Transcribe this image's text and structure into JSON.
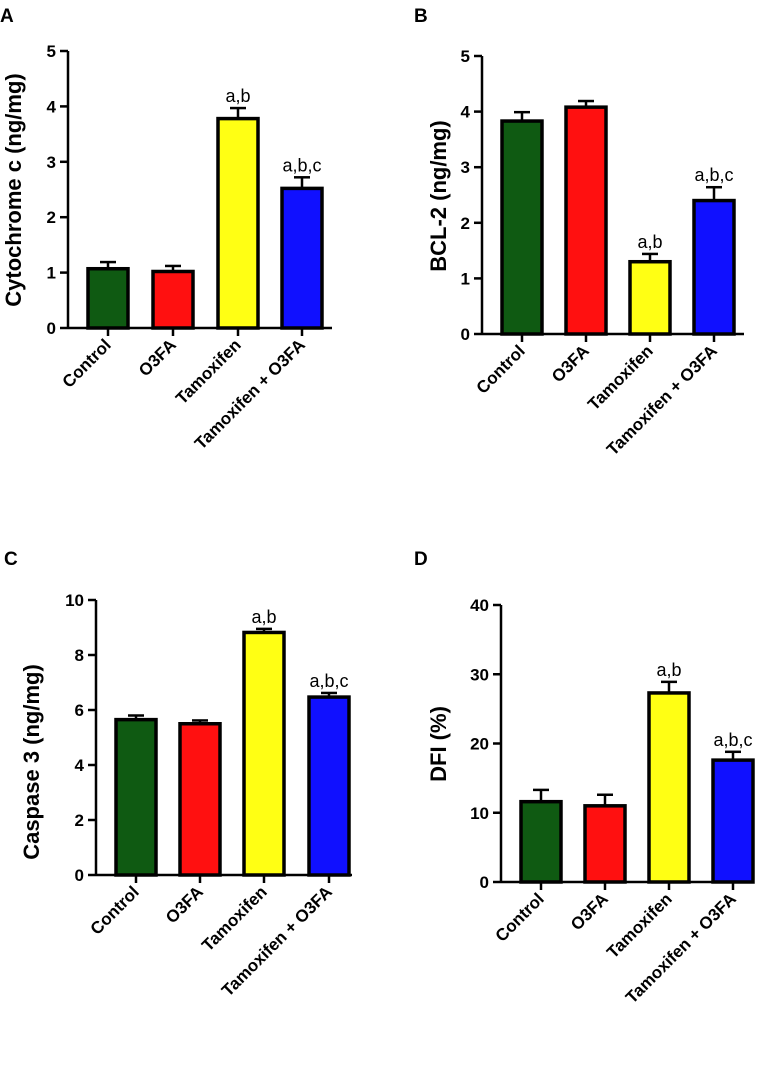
{
  "figure": {
    "groups": [
      "Control",
      "O3FA",
      "Tamoxifen",
      "Tamoxifen + O3FA"
    ]
  },
  "colors": [
    "#0f5a12",
    "#ff1010",
    "#ffff14",
    "#1010ff"
  ],
  "chart_data": [
    {
      "panel": "A",
      "type": "bar",
      "categories": [
        "Control",
        "O3FA",
        "Tamoxifen",
        "Tamoxifen + O3FA"
      ],
      "values": [
        1.07,
        1.02,
        3.78,
        2.52
      ],
      "errors": [
        0.12,
        0.1,
        0.19,
        0.2
      ],
      "annotations": [
        "",
        "",
        "a,b",
        "a,b,c"
      ],
      "ylabel": "Cytochrome c (ng/mg)",
      "ylim": [
        0,
        5
      ],
      "yticks": [
        0,
        1,
        2,
        3,
        4,
        5
      ]
    },
    {
      "panel": "B",
      "type": "bar",
      "categories": [
        "Control",
        "O3FA",
        "Tamoxifen",
        "Tamoxifen + O3FA"
      ],
      "values": [
        3.83,
        4.08,
        1.3,
        2.4
      ],
      "errors": [
        0.16,
        0.11,
        0.14,
        0.24
      ],
      "annotations": [
        "",
        "",
        "a,b",
        "a,b,c"
      ],
      "ylabel": "BCL-2 (ng/mg)",
      "ylim": [
        0,
        5
      ],
      "yticks": [
        0,
        1,
        2,
        3,
        4,
        5
      ]
    },
    {
      "panel": "C",
      "type": "bar",
      "categories": [
        "Control",
        "O3FA",
        "Tamoxifen",
        "Tamoxifen + O3FA"
      ],
      "values": [
        5.65,
        5.5,
        8.82,
        6.47
      ],
      "errors": [
        0.15,
        0.12,
        0.13,
        0.15
      ],
      "annotations": [
        "",
        "",
        "a,b",
        "a,b,c"
      ],
      "ylabel": "Caspase 3 (ng/mg)",
      "ylim": [
        0,
        10
      ],
      "yticks": [
        0,
        2,
        4,
        6,
        8,
        10
      ]
    },
    {
      "panel": "D",
      "type": "bar",
      "categories": [
        "Control",
        "O3FA",
        "Tamoxifen",
        "Tamoxifen + O3FA"
      ],
      "values": [
        11.6,
        11.0,
        27.3,
        17.6
      ],
      "errors": [
        1.7,
        1.6,
        1.6,
        1.2
      ],
      "annotations": [
        "",
        "",
        "a,b",
        "a,b,c"
      ],
      "ylabel": "DFI (%)",
      "ylim": [
        0,
        40
      ],
      "yticks": [
        0,
        10,
        20,
        30,
        40
      ]
    }
  ]
}
